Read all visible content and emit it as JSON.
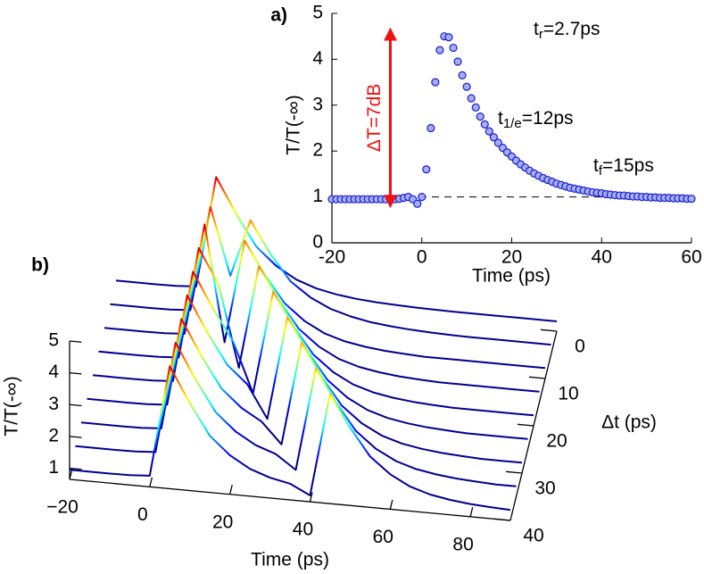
{
  "chart_data": [
    {
      "type": "scatter",
      "panel_label": "a)",
      "xlabel": "Time (ps)",
      "ylabel": "T/T(-∞)",
      "xlim": [
        -20,
        60
      ],
      "ylim": [
        0,
        5
      ],
      "xticks": [
        -20,
        0,
        20,
        40,
        60
      ],
      "yticks": [
        0,
        1,
        2,
        3,
        4,
        5
      ],
      "marker_color": "#1c1ccf",
      "marker_fill": "#a4aef2",
      "refline": 1,
      "arrow": {
        "x": -7,
        "from": 0.9,
        "to": 4.55,
        "label": "ΔT=7dB",
        "color": "#ee1111"
      },
      "annotations": [
        {
          "text": "t",
          "sub": "r",
          "rest": "=2.7ps"
        },
        {
          "text": "t",
          "sub": "1/e",
          "rest": "=12ps"
        },
        {
          "text": "t",
          "sub": "f",
          "rest": "=15ps"
        }
      ],
      "x": [
        -20,
        -19,
        -18,
        -17,
        -16,
        -15,
        -14,
        -13,
        -12,
        -11,
        -10,
        -9,
        -8,
        -7,
        -6,
        -5,
        -4,
        -3,
        -2,
        -1,
        0,
        1,
        2,
        3,
        4,
        5,
        6,
        7,
        8,
        9,
        10,
        11,
        12,
        13,
        14,
        15,
        16,
        17,
        18,
        19,
        20,
        21,
        22,
        23,
        24,
        25,
        26,
        27,
        28,
        29,
        30,
        31,
        32,
        33,
        34,
        35,
        36,
        37,
        38,
        39,
        40,
        41,
        42,
        43,
        44,
        45,
        46,
        47,
        48,
        49,
        50,
        51,
        52,
        53,
        54,
        55,
        56,
        57,
        58,
        59,
        60
      ],
      "values": [
        0.95,
        0.95,
        0.95,
        0.95,
        0.95,
        0.95,
        0.95,
        0.95,
        0.95,
        0.95,
        0.95,
        0.95,
        0.95,
        0.95,
        0.95,
        0.96,
        0.98,
        1.0,
        0.95,
        0.85,
        1.0,
        1.6,
        2.5,
        3.5,
        4.2,
        4.5,
        4.48,
        4.25,
        3.95,
        3.65,
        3.4,
        3.15,
        2.95,
        2.75,
        2.58,
        2.43,
        2.3,
        2.18,
        2.07,
        1.97,
        1.88,
        1.79,
        1.71,
        1.64,
        1.57,
        1.51,
        1.46,
        1.41,
        1.37,
        1.33,
        1.29,
        1.26,
        1.23,
        1.2,
        1.18,
        1.16,
        1.14,
        1.12,
        1.1,
        1.09,
        1.08,
        1.06,
        1.05,
        1.04,
        1.03,
        1.03,
        1.02,
        1.01,
        1.01,
        1.0,
        1.0,
        0.99,
        0.99,
        0.98,
        0.98,
        0.98,
        0.97,
        0.97,
        0.97,
        0.96,
        0.96
      ]
    },
    {
      "type": "waterfall",
      "panel_label": "b)",
      "xlabel": "Time (ps)",
      "ylabel": "T/T(-∞)",
      "zlabel": "Δt (ps)",
      "xlim": [
        -20,
        90
      ],
      "ylim": [
        0.65,
        5
      ],
      "zlim": [
        0,
        40
      ],
      "xticks": [
        {
          "value": -20,
          "label": "−20"
        },
        0,
        20,
        40,
        60,
        80
      ],
      "yticks": [
        1,
        2,
        3,
        4,
        5
      ],
      "zticks": [
        0,
        10,
        20,
        30,
        40
      ],
      "colormap": "jet",
      "clim": [
        1,
        4.5
      ],
      "x": [
        -20,
        -15,
        -10,
        -5,
        0,
        5,
        10,
        15,
        20,
        25,
        30,
        35,
        40,
        45,
        50,
        55,
        60,
        65,
        70,
        75,
        80,
        85,
        90
      ],
      "series": [
        {
          "dt": 0,
          "values": [
            0.95,
            0.95,
            0.95,
            0.96,
            1.0,
            4.5,
            3.4,
            2.43,
            1.88,
            1.51,
            1.29,
            1.16,
            1.08,
            1.03,
            1.0,
            0.98,
            0.97,
            0.96,
            0.96,
            0.96,
            0.96,
            0.96,
            0.96
          ]
        },
        {
          "dt": 5,
          "values": [
            0.95,
            0.95,
            0.95,
            0.96,
            1.0,
            4.3,
            2.2,
            4.0,
            3.0,
            2.2,
            1.75,
            1.45,
            1.27,
            1.15,
            1.08,
            1.03,
            1.0,
            0.98,
            0.97,
            0.97,
            0.97,
            0.97,
            0.97
          ]
        },
        {
          "dt": 10,
          "values": [
            0.95,
            0.95,
            0.95,
            0.96,
            1.0,
            4.5,
            0.85,
            4.1,
            3.1,
            2.25,
            1.75,
            1.42,
            1.23,
            1.12,
            1.05,
            1.01,
            0.98,
            0.98,
            0.98,
            0.98,
            0.98,
            0.98,
            0.98
          ]
        },
        {
          "dt": 15,
          "values": [
            0.95,
            0.95,
            0.95,
            0.96,
            1.0,
            4.5,
            3.4,
            0.85,
            4.1,
            3.1,
            2.25,
            1.75,
            1.42,
            1.23,
            1.12,
            1.05,
            1.01,
            0.98,
            0.98,
            0.98,
            0.98,
            0.98,
            0.98
          ]
        },
        {
          "dt": 20,
          "values": [
            0.95,
            0.95,
            0.95,
            0.96,
            1.0,
            4.5,
            3.4,
            2.43,
            0.85,
            4.1,
            3.1,
            2.25,
            1.75,
            1.42,
            1.23,
            1.12,
            1.05,
            1.01,
            0.98,
            0.98,
            0.98,
            0.98,
            0.98
          ]
        },
        {
          "dt": 25,
          "values": [
            0.95,
            0.95,
            0.95,
            0.96,
            1.0,
            4.5,
            3.4,
            2.43,
            1.88,
            0.85,
            4.1,
            3.1,
            2.25,
            1.75,
            1.42,
            1.23,
            1.12,
            1.05,
            1.01,
            0.98,
            0.98,
            0.98,
            0.98
          ]
        },
        {
          "dt": 30,
          "values": [
            0.95,
            0.95,
            0.95,
            0.96,
            1.0,
            4.5,
            3.4,
            2.43,
            1.88,
            1.51,
            0.85,
            4.1,
            3.1,
            2.25,
            1.75,
            1.42,
            1.23,
            1.12,
            1.05,
            1.01,
            0.98,
            0.98,
            0.98
          ]
        },
        {
          "dt": 35,
          "values": [
            0.95,
            0.95,
            0.95,
            0.96,
            1.0,
            4.5,
            3.4,
            2.43,
            1.88,
            1.51,
            1.29,
            0.85,
            4.1,
            3.1,
            2.25,
            1.75,
            1.42,
            1.23,
            1.12,
            1.05,
            1.01,
            0.98,
            0.98
          ]
        },
        {
          "dt": 40,
          "values": [
            0.95,
            0.95,
            0.95,
            0.96,
            1.0,
            4.5,
            3.4,
            2.43,
            1.88,
            1.51,
            1.29,
            1.16,
            0.85,
            4.1,
            3.1,
            2.25,
            1.75,
            1.42,
            1.23,
            1.12,
            1.05,
            1.01,
            0.98
          ]
        }
      ]
    }
  ]
}
